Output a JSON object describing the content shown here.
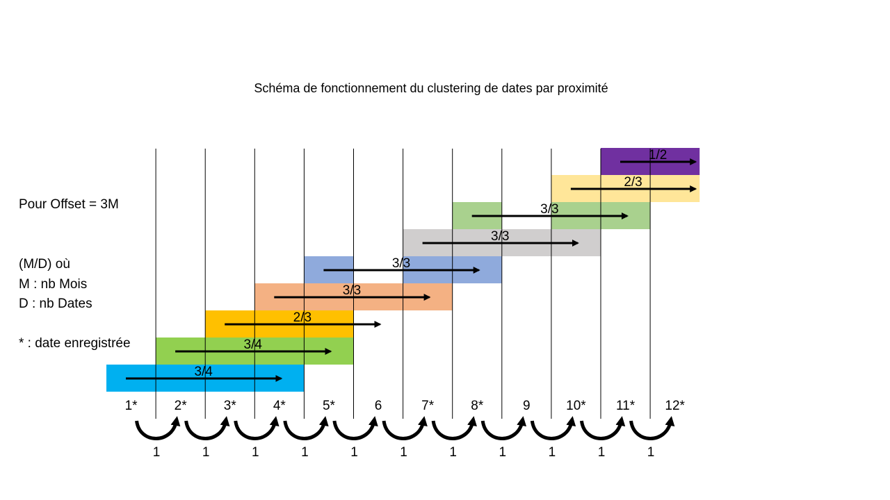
{
  "title": "Schéma de fonctionnement du clustering de dates par proximité",
  "legend": {
    "offset": "Pour Offset = 3M",
    "format": "(M/D) où",
    "m_def": "M : nb Mois",
    "d_def": "D : nb Dates",
    "star_def": "* : date enregistrée"
  },
  "months": [
    "1*",
    "2*",
    "3*",
    "4*",
    "5*",
    "6",
    "7*",
    "8*",
    "9",
    "10*",
    "11*",
    "12*"
  ],
  "gaps": [
    "1",
    "1",
    "1",
    "1",
    "1",
    "1",
    "1",
    "1",
    "1",
    "1",
    "1"
  ],
  "clusters": [
    {
      "label": "3/4",
      "start_month": 1,
      "span_months": 4,
      "color": "#00B0F0"
    },
    {
      "label": "3/4",
      "start_month": 2,
      "span_months": 4,
      "color": "#92D050"
    },
    {
      "label": "2/3",
      "start_month": 3,
      "span_months": 3,
      "color": "#FFC000"
    },
    {
      "label": "3/3",
      "start_month": 4,
      "span_months": 3,
      "color": "#F4B183",
      "extra_block": 7
    },
    {
      "label": "3/3",
      "start_month": 5,
      "span_months": 1,
      "color": "#8FAADC",
      "extra_from": 7,
      "extra_span": 2
    },
    {
      "label": "3/3",
      "start_month": 7,
      "span_months": 4,
      "color": "#D0CECE"
    },
    {
      "label": "3/3",
      "start_month": 8,
      "span_months": 1,
      "color": "#A9D18E",
      "extra_from": 10,
      "extra_span": 2
    },
    {
      "label": "2/3",
      "start_month": 10,
      "span_months": 3,
      "color": "#FFE699"
    },
    {
      "label": "1/2",
      "start_month": 11,
      "span_months": 2,
      "color": "#7030A0"
    }
  ]
}
